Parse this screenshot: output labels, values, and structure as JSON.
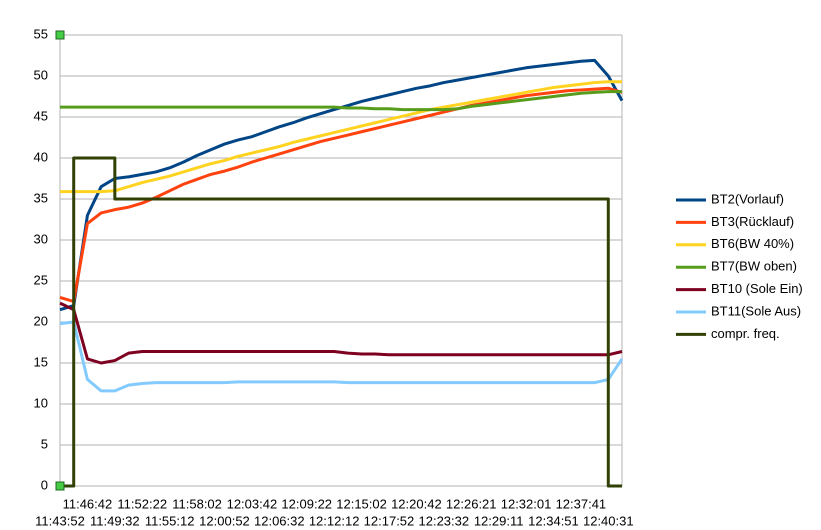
{
  "chart_data": {
    "type": "line",
    "categories": [
      "11:43:52",
      null,
      "11:46:42",
      null,
      "11:49:32",
      null,
      "11:52:22",
      null,
      "11:55:12",
      null,
      "11:58:02",
      null,
      "12:00:52",
      null,
      "12:03:42",
      null,
      "12:06:32",
      null,
      "12:09:22",
      null,
      "12:12:12",
      null,
      "12:15:02",
      null,
      "12:17:52",
      null,
      "12:20:42",
      null,
      "12:23:32",
      null,
      "12:26:21",
      null,
      "12:29:11",
      null,
      "12:32:01",
      null,
      "12:34:51",
      null,
      "12:37:41",
      null,
      "12:40:31",
      null
    ],
    "series": [
      {
        "name": "BT2(Vorlauf)",
        "color": "#004586",
        "values": [
          21.5,
          22,
          33,
          36.5,
          37.5,
          37.7,
          38,
          38.3,
          38.8,
          39.5,
          40.3,
          41,
          41.7,
          42.2,
          42.6,
          43.2,
          43.8,
          44.3,
          44.9,
          45.4,
          45.9,
          46.4,
          46.9,
          47.3,
          47.7,
          48.1,
          48.5,
          48.8,
          49.2,
          49.5,
          49.8,
          50.1,
          50.4,
          50.7,
          51,
          51.2,
          51.4,
          51.6,
          51.8,
          51.9,
          50,
          47
        ]
      },
      {
        "name": "BT3(Rücklauf)",
        "color": "#ff420e",
        "values": [
          23,
          22.5,
          32,
          33.3,
          33.7,
          34,
          34.5,
          35.2,
          36,
          36.8,
          37.4,
          38,
          38.4,
          38.9,
          39.5,
          40,
          40.5,
          41,
          41.5,
          42,
          42.4,
          42.8,
          43.2,
          43.6,
          44,
          44.4,
          44.8,
          45.2,
          45.6,
          46,
          46.4,
          46.7,
          47,
          47.3,
          47.6,
          47.8,
          48,
          48.2,
          48.3,
          48.4,
          48.5,
          48
        ]
      },
      {
        "name": "BT6(BW 40%)",
        "color": "#ffd320",
        "values": [
          35.9,
          35.9,
          35.9,
          35.9,
          36,
          36.5,
          37,
          37.4,
          37.8,
          38.3,
          38.8,
          39.3,
          39.7,
          40.2,
          40.6,
          41,
          41.4,
          41.9,
          42.3,
          42.7,
          43.1,
          43.5,
          43.9,
          44.3,
          44.7,
          45.1,
          45.5,
          45.9,
          46.2,
          46.5,
          46.8,
          47.1,
          47.4,
          47.7,
          48,
          48.3,
          48.6,
          48.8,
          49,
          49.2,
          49.3,
          49.3
        ]
      },
      {
        "name": "BT7(BW oben)",
        "color": "#579d1c",
        "values": [
          46.2,
          46.2,
          46.2,
          46.2,
          46.2,
          46.2,
          46.2,
          46.2,
          46.2,
          46.2,
          46.2,
          46.2,
          46.2,
          46.2,
          46.2,
          46.2,
          46.2,
          46.2,
          46.2,
          46.2,
          46.2,
          46.1,
          46.1,
          46,
          46,
          45.9,
          45.9,
          45.9,
          45.9,
          46,
          46.3,
          46.5,
          46.7,
          46.9,
          47.1,
          47.3,
          47.5,
          47.7,
          47.9,
          48,
          48.1,
          48.1
        ]
      },
      {
        "name": "BT10 (Sole Ein)",
        "color": "#7e0021",
        "values": [
          22.3,
          21.5,
          15.5,
          15,
          15.3,
          16.2,
          16.4,
          16.4,
          16.4,
          16.4,
          16.4,
          16.4,
          16.4,
          16.4,
          16.4,
          16.4,
          16.4,
          16.4,
          16.4,
          16.4,
          16.4,
          16.2,
          16.1,
          16.1,
          16,
          16,
          16,
          16,
          16,
          16,
          16,
          16,
          16,
          16,
          16,
          16,
          16,
          16,
          16,
          16,
          16,
          16.4
        ]
      },
      {
        "name": "BT11(Sole Aus)",
        "color": "#83caff",
        "values": [
          19.8,
          20,
          13,
          11.6,
          11.6,
          12.3,
          12.5,
          12.6,
          12.6,
          12.6,
          12.6,
          12.6,
          12.6,
          12.7,
          12.7,
          12.7,
          12.7,
          12.7,
          12.7,
          12.7,
          12.7,
          12.6,
          12.6,
          12.6,
          12.6,
          12.6,
          12.6,
          12.6,
          12.6,
          12.6,
          12.6,
          12.6,
          12.6,
          12.6,
          12.6,
          12.6,
          12.6,
          12.6,
          12.6,
          12.6,
          13,
          15.5
        ]
      },
      {
        "name": "compr. freq.",
        "color": "#314004",
        "step": true,
        "values": [
          0,
          40,
          40,
          40,
          35,
          35,
          35,
          35,
          35,
          35,
          35,
          35,
          35,
          35,
          35,
          35,
          35,
          35,
          35,
          35,
          35,
          35,
          35,
          35,
          35,
          35,
          35,
          35,
          35,
          35,
          35,
          35,
          35,
          35,
          35,
          35,
          35,
          35,
          35,
          35,
          0,
          0
        ]
      }
    ],
    "ylim": [
      0,
      55
    ],
    "yticks": [
      0,
      5,
      10,
      15,
      20,
      25,
      30,
      35,
      40,
      45,
      50,
      55
    ],
    "grid": true,
    "legend": "right"
  }
}
